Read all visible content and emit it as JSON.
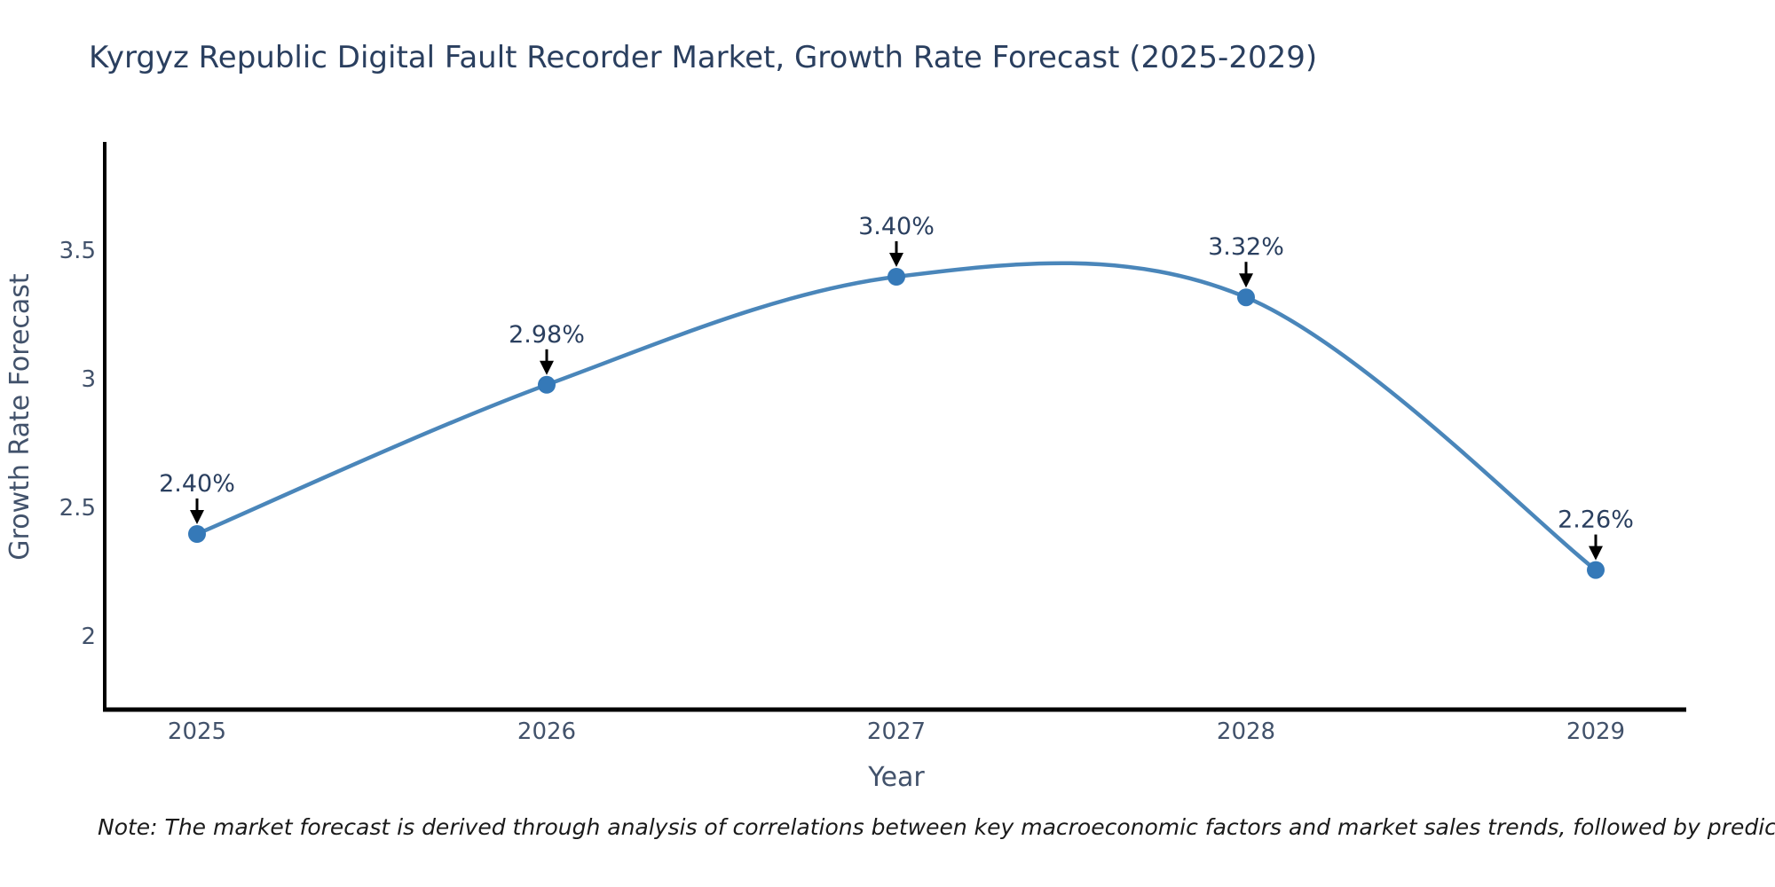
{
  "title": "Kyrgyz Republic Digital Fault Recorder Market, Growth Rate Forecast (2025-2029)",
  "note": "Note: The market forecast is derived through analysis of correlations between key macroeconomic factors and market sales trends, followed by predictive modeling to project future sales",
  "chart_data": {
    "type": "line",
    "title": "Kyrgyz Republic Digital Fault Recorder Market, Growth Rate Forecast (2025-2029)",
    "xlabel": "Year",
    "ylabel": "Growth Rate Forecast",
    "x": [
      2025,
      2026,
      2027,
      2028,
      2029
    ],
    "values": [
      2.4,
      2.98,
      3.4,
      3.32,
      2.26
    ],
    "point_labels": [
      "2.40%",
      "2.98%",
      "3.40%",
      "3.32%",
      "2.26%"
    ],
    "x_tick_labels": [
      "2025",
      "2026",
      "2027",
      "2028",
      "2029"
    ],
    "y_ticks": [
      2,
      2.5,
      3,
      3.5
    ],
    "y_tick_labels": [
      "2",
      "2.5",
      "3",
      "3.5"
    ],
    "xlim": [
      2024.73,
      2029.26
    ],
    "ylim": [
      1.71,
      3.91
    ],
    "line_shape": "spline",
    "grid": false,
    "legend_position": "none",
    "colors": {
      "line": "#4a86ba",
      "marker": "#3579b8",
      "axis": "#000000",
      "arrow": "#000000",
      "title_text": "#2a3f5f",
      "tick_text": "#42526b",
      "annotation_text": "#2a3f5f",
      "background": "#ffffff"
    }
  }
}
